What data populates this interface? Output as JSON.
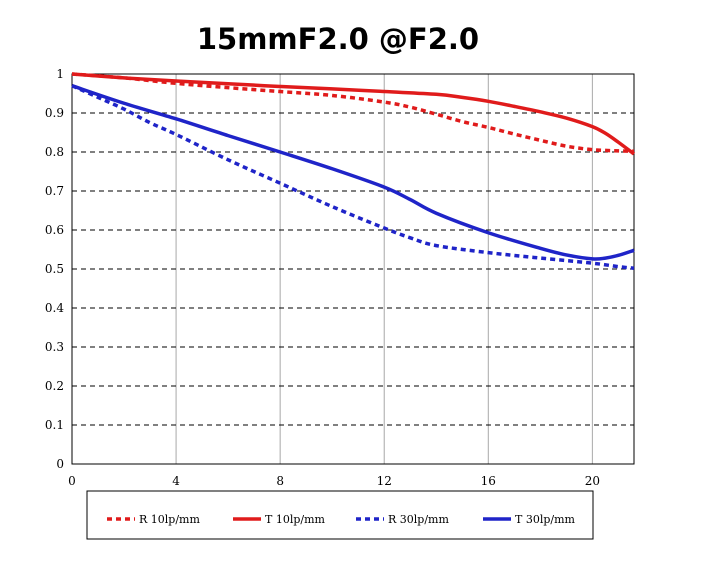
{
  "chart_data": {
    "type": "line",
    "title": "15mmF2.0 @F2.0",
    "xlabel": "",
    "ylabel": "",
    "xlim": [
      0,
      21.6
    ],
    "ylim": [
      0,
      1
    ],
    "x_ticks": [
      0,
      4,
      8,
      12,
      16,
      20
    ],
    "x_tick_labels": [
      "0",
      "4",
      "8",
      "12",
      "16",
      "20"
    ],
    "y_ticks": [
      0,
      0.1,
      0.2,
      0.3,
      0.4,
      0.5,
      0.6,
      0.7,
      0.8,
      0.9,
      1
    ],
    "y_tick_labels": [
      "0",
      "0.1",
      "0.2",
      "0.3",
      "0.4",
      "0.5",
      "0.6",
      "0.7",
      "0.8",
      "0.9",
      "1"
    ],
    "grid": {
      "vertical": "solid-gray",
      "horizontal": "dashed-black"
    },
    "legend": "bottom",
    "series": [
      {
        "name": "R 10lp/mm",
        "color": "#e01b1b",
        "style": "dotted",
        "x": [
          0,
          2,
          4,
          6,
          8,
          10,
          12,
          13,
          14,
          15,
          16,
          17,
          18,
          19,
          20,
          21,
          21.6
        ],
        "y": [
          1.0,
          0.99,
          0.976,
          0.965,
          0.955,
          0.945,
          0.928,
          0.915,
          0.897,
          0.878,
          0.863,
          0.846,
          0.83,
          0.815,
          0.806,
          0.803,
          0.802
        ]
      },
      {
        "name": "T 10lp/mm",
        "color": "#e01b1b",
        "style": "solid",
        "x": [
          0,
          2,
          4,
          6,
          8,
          10,
          12,
          14,
          15,
          16,
          17,
          18,
          19,
          20,
          20.5,
          21,
          21.6
        ],
        "y": [
          1.0,
          0.99,
          0.982,
          0.975,
          0.968,
          0.962,
          0.955,
          0.948,
          0.94,
          0.93,
          0.917,
          0.903,
          0.887,
          0.865,
          0.848,
          0.825,
          0.795
        ]
      },
      {
        "name": "R 30lp/mm",
        "color": "#1f24c8",
        "style": "dotted",
        "x": [
          0,
          1,
          2,
          3,
          4,
          6,
          8,
          10,
          12,
          13,
          14,
          16,
          18,
          20,
          21,
          21.6
        ],
        "y": [
          0.97,
          0.94,
          0.91,
          0.875,
          0.845,
          0.78,
          0.72,
          0.66,
          0.605,
          0.58,
          0.56,
          0.542,
          0.528,
          0.515,
          0.506,
          0.502
        ]
      },
      {
        "name": "T 30lp/mm",
        "color": "#1f24c8",
        "style": "solid",
        "x": [
          0,
          2,
          4,
          6,
          8,
          10,
          12,
          13,
          14,
          16,
          18,
          19,
          20,
          20.5,
          21,
          21.6
        ],
        "y": [
          0.97,
          0.925,
          0.885,
          0.842,
          0.8,
          0.757,
          0.71,
          0.678,
          0.643,
          0.593,
          0.553,
          0.536,
          0.526,
          0.528,
          0.535,
          0.548
        ]
      }
    ]
  }
}
